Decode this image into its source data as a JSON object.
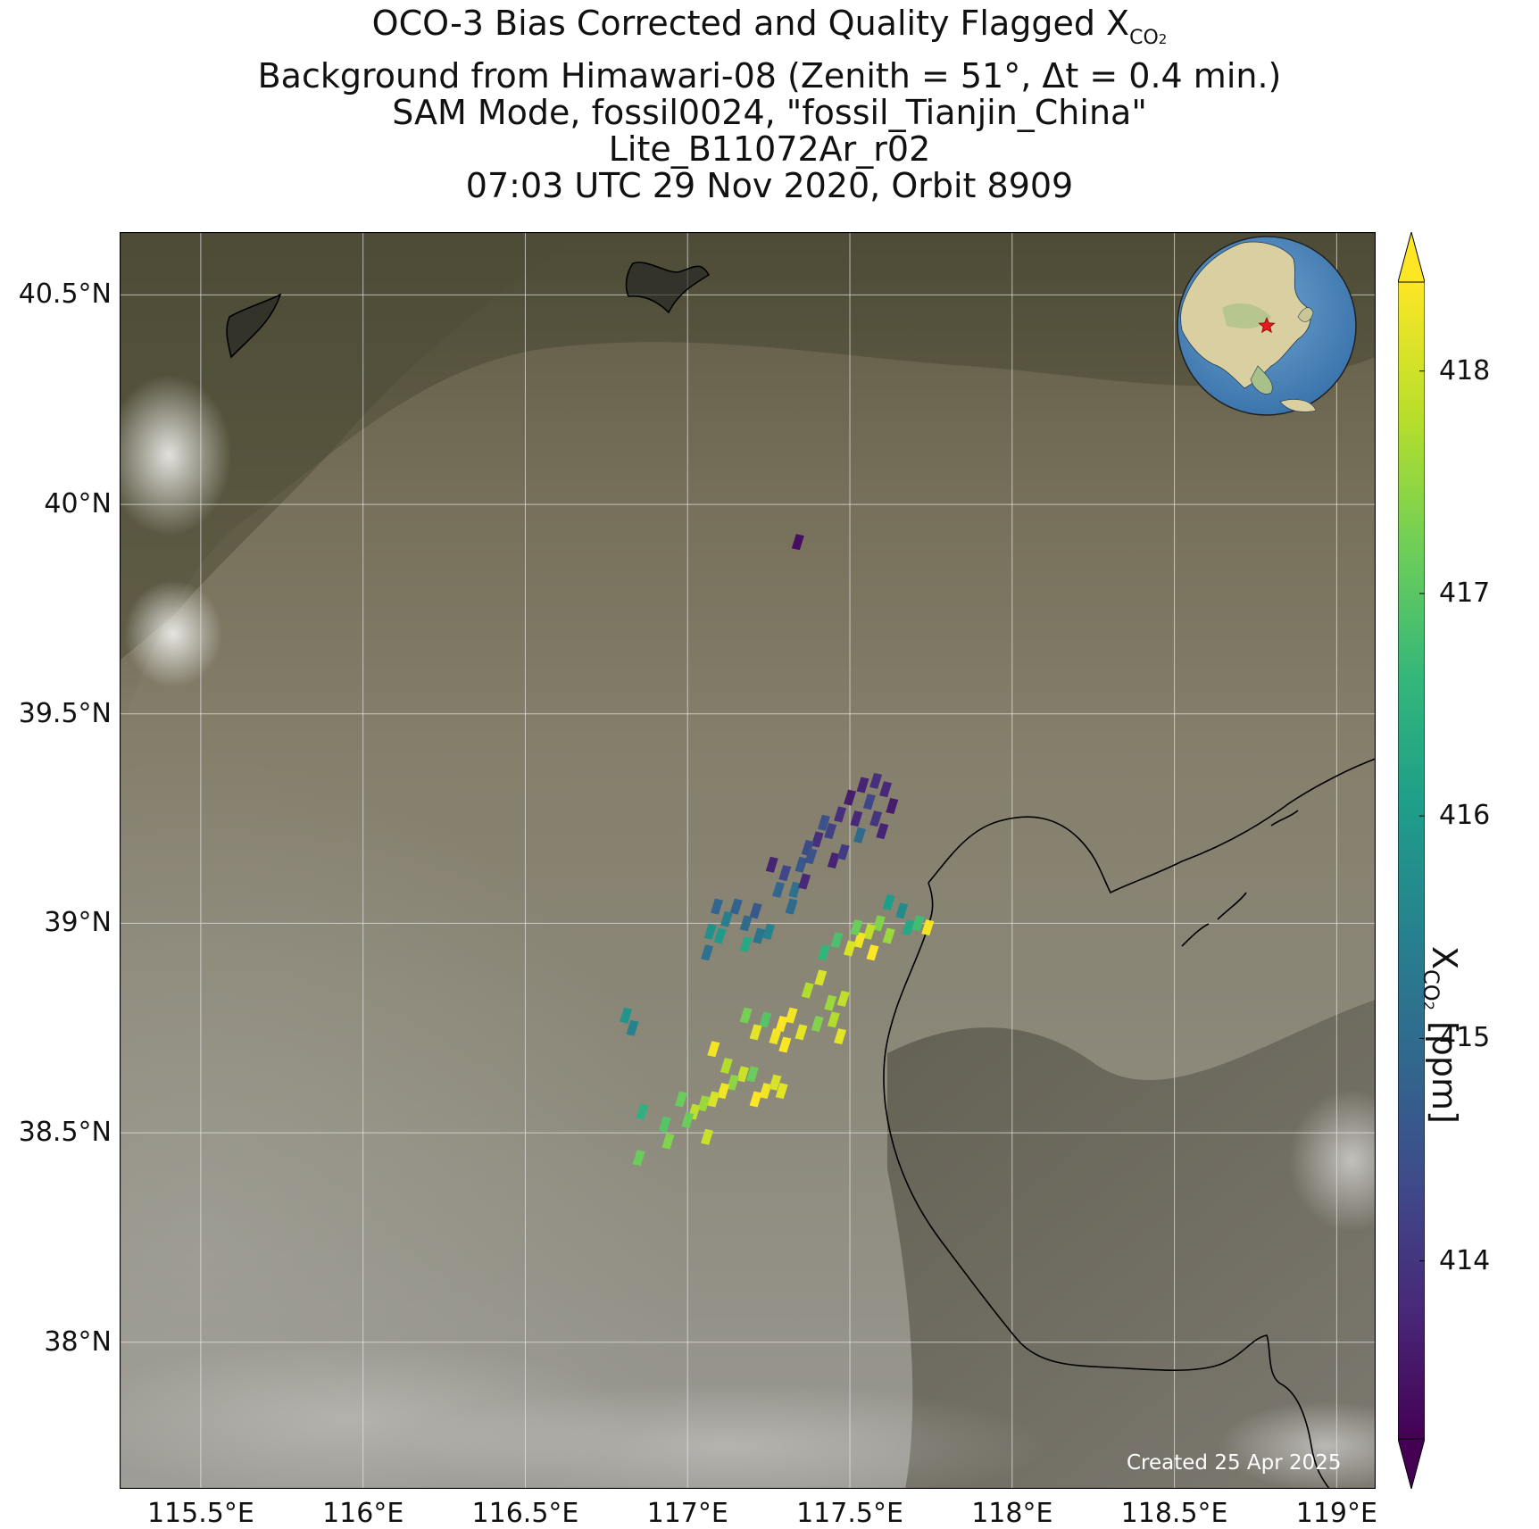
{
  "title": {
    "line1_prefix": "OCO-3 Bias Corrected and Quality Flagged X",
    "line1_sub": "CO",
    "line1_subsub": "2",
    "line2": "Background from Himawari-08 (Zenith = 51°, Δt =  0.4 min.)",
    "line3": "SAM Mode, fossil0024, \"fossil_Tianjin_China\"",
    "line4": "Lite_B11072Ar_r02",
    "line5": "07:03 UTC 29 Nov 2020, Orbit 8909"
  },
  "map": {
    "extent": {
      "lon_min": 115.25,
      "lon_max": 119.12,
      "lat_min": 37.65,
      "lat_max": 40.65
    },
    "lat_ticks": [
      {
        "value": 40.5,
        "label": "40.5°N"
      },
      {
        "value": 40.0,
        "label": "40°N"
      },
      {
        "value": 39.5,
        "label": "39.5°N"
      },
      {
        "value": 39.0,
        "label": "39°N"
      },
      {
        "value": 38.5,
        "label": "38.5°N"
      },
      {
        "value": 38.0,
        "label": "38°N"
      }
    ],
    "lon_ticks": [
      {
        "value": 115.5,
        "label": "115.5°E"
      },
      {
        "value": 116.0,
        "label": "116°E"
      },
      {
        "value": 116.5,
        "label": "116.5°E"
      },
      {
        "value": 117.0,
        "label": "117°E"
      },
      {
        "value": 117.5,
        "label": "117.5°E"
      },
      {
        "value": 118.0,
        "label": "118°E"
      },
      {
        "value": 118.5,
        "label": "118.5°E"
      },
      {
        "value": 119.0,
        "label": "119°E"
      }
    ],
    "target_marker": {
      "lon": 117.2,
      "lat": 39.1,
      "color": "#e41a1c"
    },
    "created_text": "Created 25 Apr 2025"
  },
  "colorbar": {
    "label_prefix": "X",
    "label_sub": "CO",
    "label_subsub": "2",
    "label_suffix": " [ppm]",
    "vmin": 413.2,
    "vmax": 418.4,
    "ticks": [
      {
        "value": 414,
        "label": "414"
      },
      {
        "value": 415,
        "label": "415"
      },
      {
        "value": 416,
        "label": "416"
      },
      {
        "value": 417,
        "label": "417"
      },
      {
        "value": 418,
        "label": "418"
      }
    ],
    "colormap": "viridis",
    "colors": [
      "#440154",
      "#482878",
      "#3e4a89",
      "#31688e",
      "#26828e",
      "#1f9e89",
      "#35b779",
      "#6ece58",
      "#b5de2b",
      "#fde725"
    ],
    "extend": "both"
  },
  "soundings": [
    {
      "lon": 117.34,
      "lat": 39.91,
      "xco2": 413.4
    },
    {
      "lon": 117.5,
      "lat": 39.3,
      "xco2": 413.6
    },
    {
      "lon": 117.54,
      "lat": 39.33,
      "xco2": 413.7
    },
    {
      "lon": 117.58,
      "lat": 39.34,
      "xco2": 413.9
    },
    {
      "lon": 117.61,
      "lat": 39.32,
      "xco2": 413.8
    },
    {
      "lon": 117.63,
      "lat": 39.28,
      "xco2": 413.6
    },
    {
      "lon": 117.56,
      "lat": 39.29,
      "xco2": 414.3
    },
    {
      "lon": 117.52,
      "lat": 39.25,
      "xco2": 413.8
    },
    {
      "lon": 117.47,
      "lat": 39.26,
      "xco2": 413.9
    },
    {
      "lon": 117.44,
      "lat": 39.22,
      "xco2": 414.2
    },
    {
      "lon": 117.4,
      "lat": 39.2,
      "xco2": 413.9
    },
    {
      "lon": 117.37,
      "lat": 39.18,
      "xco2": 414.4
    },
    {
      "lon": 117.45,
      "lat": 39.15,
      "xco2": 413.7
    },
    {
      "lon": 117.48,
      "lat": 39.17,
      "xco2": 414.1
    },
    {
      "lon": 117.58,
      "lat": 39.25,
      "xco2": 414.0
    },
    {
      "lon": 117.6,
      "lat": 39.22,
      "xco2": 413.7
    },
    {
      "lon": 117.42,
      "lat": 39.24,
      "xco2": 414.5
    },
    {
      "lon": 117.35,
      "lat": 39.14,
      "xco2": 414.6
    },
    {
      "lon": 117.3,
      "lat": 39.12,
      "xco2": 414.3
    },
    {
      "lon": 117.28,
      "lat": 39.08,
      "xco2": 414.9
    },
    {
      "lon": 117.33,
      "lat": 39.08,
      "xco2": 415.1
    },
    {
      "lon": 117.36,
      "lat": 39.1,
      "xco2": 413.8
    },
    {
      "lon": 117.32,
      "lat": 39.04,
      "xco2": 415.0
    },
    {
      "lon": 117.26,
      "lat": 39.14,
      "xco2": 413.7
    },
    {
      "lon": 117.21,
      "lat": 39.03,
      "xco2": 414.6
    },
    {
      "lon": 117.18,
      "lat": 39.0,
      "xco2": 415.0
    },
    {
      "lon": 117.15,
      "lat": 39.04,
      "xco2": 414.8
    },
    {
      "lon": 117.12,
      "lat": 39.01,
      "xco2": 415.4
    },
    {
      "lon": 117.09,
      "lat": 39.04,
      "xco2": 414.9
    },
    {
      "lon": 117.07,
      "lat": 38.98,
      "xco2": 415.8
    },
    {
      "lon": 117.1,
      "lat": 38.97,
      "xco2": 416.0
    },
    {
      "lon": 117.22,
      "lat": 38.97,
      "xco2": 415.2
    },
    {
      "lon": 117.25,
      "lat": 38.98,
      "xco2": 415.5
    },
    {
      "lon": 117.06,
      "lat": 38.93,
      "xco2": 415.1
    },
    {
      "lon": 117.18,
      "lat": 38.95,
      "xco2": 416.3
    },
    {
      "lon": 117.38,
      "lat": 39.16,
      "xco2": 414.5
    },
    {
      "lon": 117.53,
      "lat": 39.21,
      "xco2": 415.0
    },
    {
      "lon": 117.66,
      "lat": 39.03,
      "xco2": 415.7
    },
    {
      "lon": 117.62,
      "lat": 39.05,
      "xco2": 416.1
    },
    {
      "lon": 117.68,
      "lat": 38.99,
      "xco2": 416.3
    },
    {
      "lon": 117.59,
      "lat": 39.0,
      "xco2": 417.4
    },
    {
      "lon": 117.56,
      "lat": 38.98,
      "xco2": 417.9
    },
    {
      "lon": 117.53,
      "lat": 38.96,
      "xco2": 418.3
    },
    {
      "lon": 117.5,
      "lat": 38.94,
      "xco2": 418.1
    },
    {
      "lon": 117.52,
      "lat": 38.99,
      "xco2": 417.2
    },
    {
      "lon": 117.57,
      "lat": 38.93,
      "xco2": 418.4
    },
    {
      "lon": 117.62,
      "lat": 38.97,
      "xco2": 417.6
    },
    {
      "lon": 117.46,
      "lat": 38.96,
      "xco2": 416.9
    },
    {
      "lon": 117.42,
      "lat": 38.93,
      "xco2": 416.6
    },
    {
      "lon": 117.74,
      "lat": 38.99,
      "xco2": 418.3
    },
    {
      "lon": 117.71,
      "lat": 39.0,
      "xco2": 416.8
    },
    {
      "lon": 117.41,
      "lat": 38.87,
      "xco2": 418.1
    },
    {
      "lon": 117.37,
      "lat": 38.84,
      "xco2": 417.8
    },
    {
      "lon": 117.48,
      "lat": 38.82,
      "xco2": 417.9
    },
    {
      "lon": 117.44,
      "lat": 38.81,
      "xco2": 417.6
    },
    {
      "lon": 117.32,
      "lat": 38.78,
      "xco2": 418.3
    },
    {
      "lon": 117.29,
      "lat": 38.76,
      "xco2": 418.4
    },
    {
      "lon": 117.35,
      "lat": 38.74,
      "xco2": 418.2
    },
    {
      "lon": 117.27,
      "lat": 38.73,
      "xco2": 418.3
    },
    {
      "lon": 117.3,
      "lat": 38.71,
      "xco2": 418.4
    },
    {
      "lon": 117.4,
      "lat": 38.76,
      "xco2": 417.4
    },
    {
      "lon": 117.45,
      "lat": 38.77,
      "xco2": 417.8
    },
    {
      "lon": 117.47,
      "lat": 38.73,
      "xco2": 418.2
    },
    {
      "lon": 117.24,
      "lat": 38.77,
      "xco2": 417.0
    },
    {
      "lon": 117.21,
      "lat": 38.74,
      "xco2": 418.2
    },
    {
      "lon": 117.18,
      "lat": 38.78,
      "xco2": 417.3
    },
    {
      "lon": 117.08,
      "lat": 38.7,
      "xco2": 418.3
    },
    {
      "lon": 116.81,
      "lat": 38.78,
      "xco2": 415.9
    },
    {
      "lon": 116.83,
      "lat": 38.75,
      "xco2": 415.5
    },
    {
      "lon": 117.17,
      "lat": 38.64,
      "xco2": 418.0
    },
    {
      "lon": 117.14,
      "lat": 38.62,
      "xco2": 417.5
    },
    {
      "lon": 117.11,
      "lat": 38.6,
      "xco2": 418.3
    },
    {
      "lon": 117.08,
      "lat": 38.58,
      "xco2": 418.1
    },
    {
      "lon": 117.05,
      "lat": 38.57,
      "xco2": 417.6
    },
    {
      "lon": 117.02,
      "lat": 38.55,
      "xco2": 417.9
    },
    {
      "lon": 117.0,
      "lat": 38.53,
      "xco2": 417.2
    },
    {
      "lon": 117.24,
      "lat": 38.6,
      "xco2": 418.3
    },
    {
      "lon": 117.27,
      "lat": 38.62,
      "xco2": 418.1
    },
    {
      "lon": 117.21,
      "lat": 38.58,
      "xco2": 418.4
    },
    {
      "lon": 117.29,
      "lat": 38.6,
      "xco2": 418.2
    },
    {
      "lon": 117.12,
      "lat": 38.66,
      "xco2": 417.8
    },
    {
      "lon": 117.2,
      "lat": 38.64,
      "xco2": 417.2
    },
    {
      "lon": 117.06,
      "lat": 38.49,
      "xco2": 418.0
    },
    {
      "lon": 116.98,
      "lat": 38.58,
      "xco2": 417.2
    },
    {
      "lon": 116.86,
      "lat": 38.55,
      "xco2": 416.5
    },
    {
      "lon": 116.93,
      "lat": 38.52,
      "xco2": 417.0
    },
    {
      "lon": 116.94,
      "lat": 38.48,
      "xco2": 417.4
    },
    {
      "lon": 116.85,
      "lat": 38.44,
      "xco2": 417.2
    }
  ]
}
